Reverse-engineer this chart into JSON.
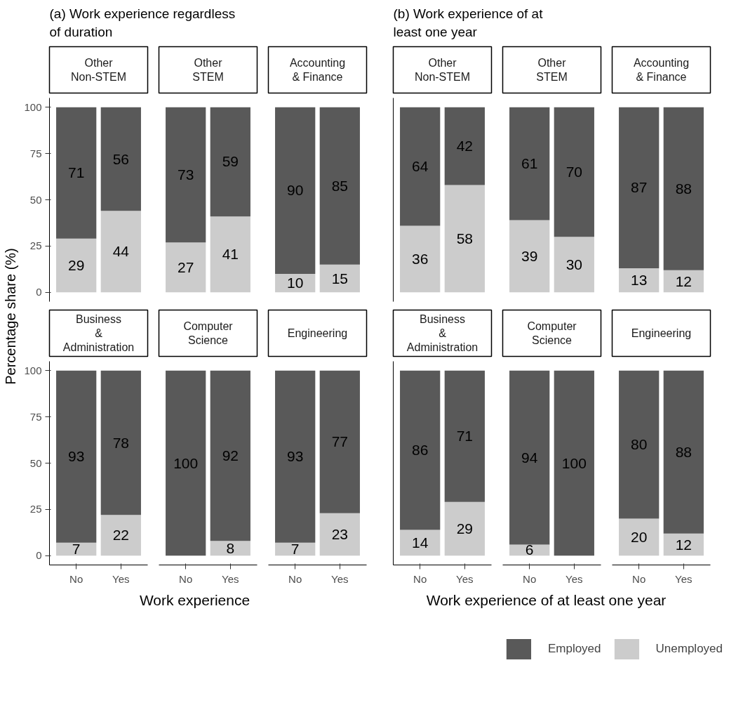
{
  "chart_data": [
    {
      "type": "bar",
      "stacked": true,
      "data_labels": true,
      "title": "Other\nNon-STEM",
      "categories": [
        null,
        null
      ],
      "ylim": [
        -5,
        105
      ],
      "yticks": [
        0,
        25,
        50,
        75,
        100
      ],
      "tick_labels": "y",
      "ylabel": "Percentage share (%)",
      "annotations": [
        "(a) Work experience regardless\nof duration"
      ],
      "series": [
        {
          "color": "#cccccc",
          "values": [
            29,
            44
          ]
        },
        {
          "color": "#595959",
          "values": [
            71,
            56
          ]
        }
      ]
    },
    {
      "type": "bar",
      "stacked": true,
      "data_labels": true,
      "title": "Other\nSTEM",
      "categories": [
        null,
        null
      ],
      "tick_labels": false,
      "series": [
        {
          "color": "#cccccc",
          "values": [
            27,
            41
          ]
        },
        {
          "color": "#595959",
          "values": [
            73,
            59
          ]
        }
      ]
    },
    {
      "type": "bar",
      "stacked": true,
      "data_labels": true,
      "title": "Accounting\n& Finance",
      "categories": [
        null,
        null
      ],
      "tick_labels": false,
      "series": [
        {
          "color": "#cccccc",
          "values": [
            10,
            15
          ]
        },
        {
          "color": "#595959",
          "values": [
            90,
            85
          ]
        }
      ]
    },
    {
      "type": "bar",
      "stacked": true,
      "data_labels": true,
      "title": "Business\n&\nAdministration",
      "categories": [
        "No",
        "Yes"
      ],
      "ylim": [
        -5,
        105
      ],
      "yticks": [
        0,
        25,
        50,
        75,
        100
      ],
      "series": [
        {
          "color": "#cccccc",
          "values": [
            7,
            22
          ]
        },
        {
          "color": "#595959",
          "values": [
            93,
            78
          ]
        }
      ]
    },
    {
      "type": "bar",
      "stacked": true,
      "data_labels": true,
      "title": "Computer\nScience",
      "categories": [
        "No",
        "Yes"
      ],
      "tick_labels": "x",
      "xlabel": "Work experience",
      "series": [
        {
          "color": "#cccccc",
          "values": [
            null,
            8
          ]
        },
        {
          "color": "#595959",
          "values": [
            100,
            92
          ]
        }
      ]
    },
    {
      "type": "bar",
      "stacked": true,
      "data_labels": true,
      "title": "Engineering",
      "categories": [
        "No",
        "Yes"
      ],
      "tick_labels": "x",
      "series": [
        {
          "color": "#cccccc",
          "values": [
            7,
            23
          ]
        },
        {
          "color": "#595959",
          "values": [
            93,
            77
          ]
        }
      ]
    },
    {
      "type": "bar",
      "stacked": true,
      "data_labels": true,
      "title": "Other\nNon-STEM",
      "categories": [
        null,
        null
      ],
      "tick_labels": false,
      "annotations": [
        "(b) Work experience of at\nleast one year"
      ],
      "series": [
        {
          "color": "#cccccc",
          "values": [
            36,
            58
          ]
        },
        {
          "color": "#595959",
          "values": [
            64,
            42
          ]
        }
      ]
    },
    {
      "type": "bar",
      "stacked": true,
      "data_labels": true,
      "title": "Other\nSTEM",
      "categories": [
        null,
        null
      ],
      "tick_labels": false,
      "series": [
        {
          "color": "#cccccc",
          "values": [
            39,
            30
          ]
        },
        {
          "color": "#595959",
          "values": [
            61,
            70
          ]
        }
      ]
    },
    {
      "type": "bar",
      "stacked": true,
      "data_labels": true,
      "title": "Accounting\n& Finance",
      "categories": [
        null,
        null
      ],
      "tick_labels": false,
      "series": [
        {
          "color": "#cccccc",
          "values": [
            13,
            12
          ]
        },
        {
          "color": "#595959",
          "values": [
            87,
            88
          ]
        }
      ]
    },
    {
      "type": "bar",
      "stacked": true,
      "data_labels": true,
      "title": "Business\n&\nAdministration",
      "categories": [
        "No",
        "Yes"
      ],
      "tick_labels": "x",
      "series": [
        {
          "color": "#cccccc",
          "values": [
            14,
            29
          ]
        },
        {
          "color": "#595959",
          "values": [
            86,
            71
          ]
        }
      ]
    },
    {
      "type": "bar",
      "stacked": true,
      "data_labels": true,
      "title": "Computer\nScience",
      "categories": [
        "No",
        "Yes"
      ],
      "tick_labels": "x",
      "xlabel": "Work experience of at least one year",
      "series": [
        {
          "color": "#cccccc",
          "values": [
            6,
            null
          ]
        },
        {
          "color": "#595959",
          "values": [
            94,
            100
          ]
        }
      ]
    },
    {
      "type": "bar",
      "stacked": true,
      "data_labels": true,
      "title": "Engineering",
      "categories": [
        "No",
        "Yes"
      ],
      "tick_labels": "x",
      "legend": "bottom",
      "series": [
        {
          "name": "Unemployed",
          "color": "#cccccc",
          "values": [
            20,
            12
          ]
        },
        {
          "name": "Employed",
          "color": "#595959",
          "values": [
            80,
            88
          ]
        }
      ]
    }
  ]
}
